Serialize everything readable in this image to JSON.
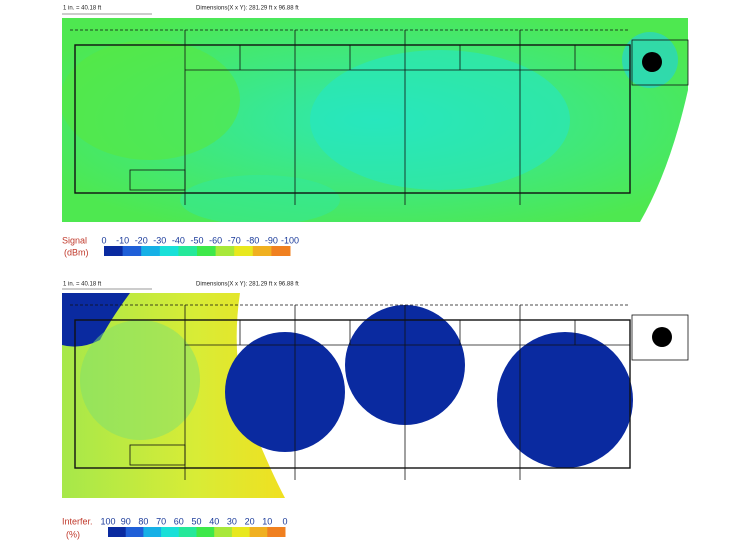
{
  "panels": [
    {
      "scale": "1 in. = 40.18 ft",
      "dimensions": "Dimensions(X x Y): 281.29 ft x 96.88 ft",
      "legend": {
        "title": "Signal",
        "unit": "(dBm)",
        "labels": [
          "0",
          "-10",
          "-20",
          "-30",
          "-40",
          "-50",
          "-60",
          "-70",
          "-80",
          "-90",
          "-100"
        ]
      }
    },
    {
      "scale": "1 in. = 40.18 ft",
      "dimensions": "Dimensions(X x Y): 281.29 ft x 96.88 ft",
      "legend": {
        "title": "Interfer.",
        "unit": "(%)",
        "labels": [
          "100",
          "90",
          "80",
          "70",
          "60",
          "50",
          "40",
          "30",
          "20",
          "10",
          "0"
        ]
      }
    }
  ]
}
